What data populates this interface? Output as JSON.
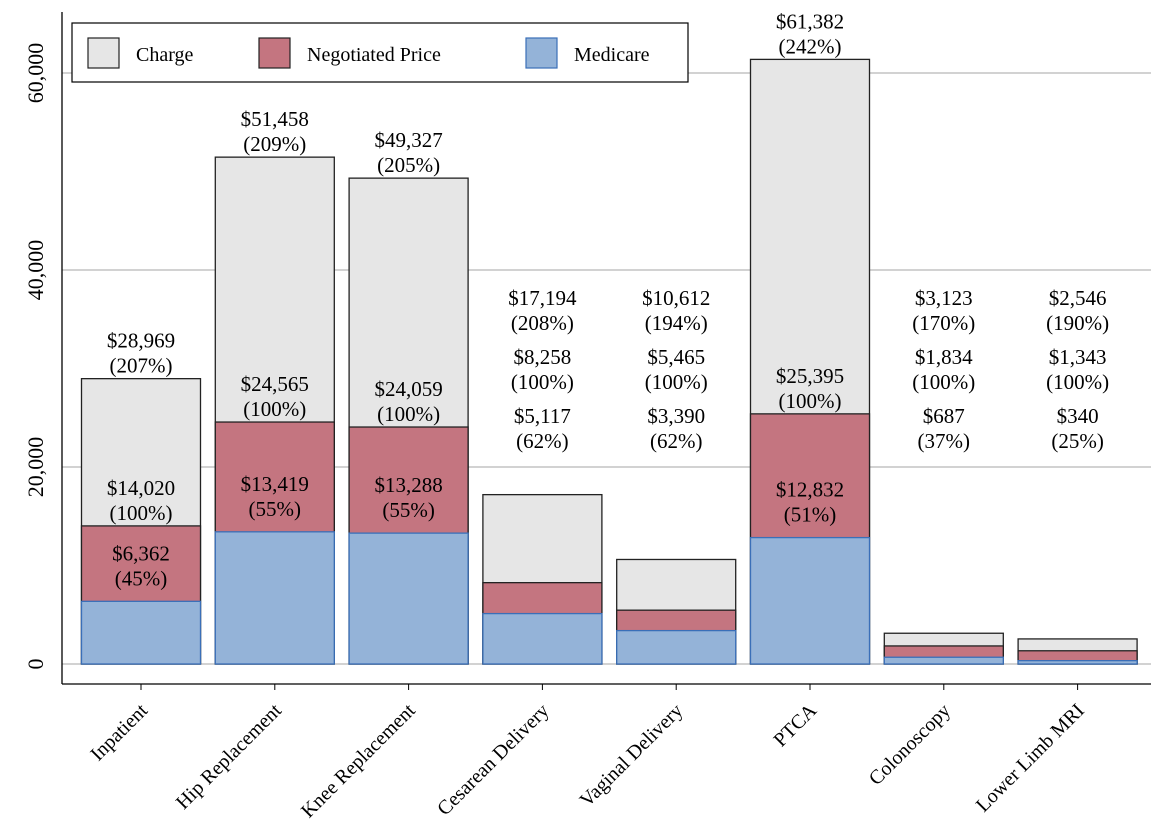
{
  "chart_data": {
    "type": "bar",
    "stacking": "overlay",
    "categories": [
      "Inpatient",
      "Hip Replacement",
      "Knee Replacement",
      "Cesarean Delivery",
      "Vaginal Delivery",
      "PTCA",
      "Colonoscopy",
      "Lower Limb MRI"
    ],
    "series": [
      {
        "name": "Charge",
        "color": "#e6e6e6",
        "values": [
          28969,
          51458,
          49327,
          17194,
          10612,
          61382,
          3123,
          2546
        ],
        "labels": [
          "$28,969",
          "$51,458",
          "$49,327",
          "$17,194",
          "$10,612",
          "$61,382",
          "$3,123",
          "$2,546"
        ],
        "pct_labels": [
          "(207%)",
          "(209%)",
          "(205%)",
          "(208%)",
          "(194%)",
          "(242%)",
          "(170%)",
          "(190%)"
        ]
      },
      {
        "name": "Negotiated Price",
        "color": "#c47580",
        "values": [
          14020,
          24565,
          24059,
          8258,
          5465,
          25395,
          1834,
          1343
        ],
        "labels": [
          "$14,020",
          "$24,565",
          "$24,059",
          "$8,258",
          "$5,465",
          "$25,395",
          "$1,834",
          "$1,343"
        ],
        "pct_labels": [
          "(100%)",
          "(100%)",
          "(100%)",
          "(100%)",
          "(100%)",
          "(100%)",
          "(100%)",
          "(100%)"
        ]
      },
      {
        "name": "Medicare",
        "color": "#94b3d8",
        "values": [
          6362,
          13419,
          13288,
          5117,
          3390,
          12832,
          687,
          340
        ],
        "labels": [
          "$6,362",
          "$13,419",
          "$13,288",
          "$5,117",
          "$3,390",
          "$12,832",
          "$687",
          "$340"
        ],
        "pct_labels": [
          "(45%)",
          "(55%)",
          "(55%)",
          "(62%)",
          "(62%)",
          "(51%)",
          "(37%)",
          "(25%)"
        ]
      }
    ],
    "y_ticks": [
      0,
      20000,
      40000,
      60000
    ],
    "y_tick_labels": [
      "0",
      "20,000",
      "40,000",
      "60,000"
    ],
    "ylim": [
      0,
      65000
    ],
    "grid": true,
    "legend_position": "top-left",
    "xlabel": "",
    "ylabel": "",
    "title": ""
  }
}
